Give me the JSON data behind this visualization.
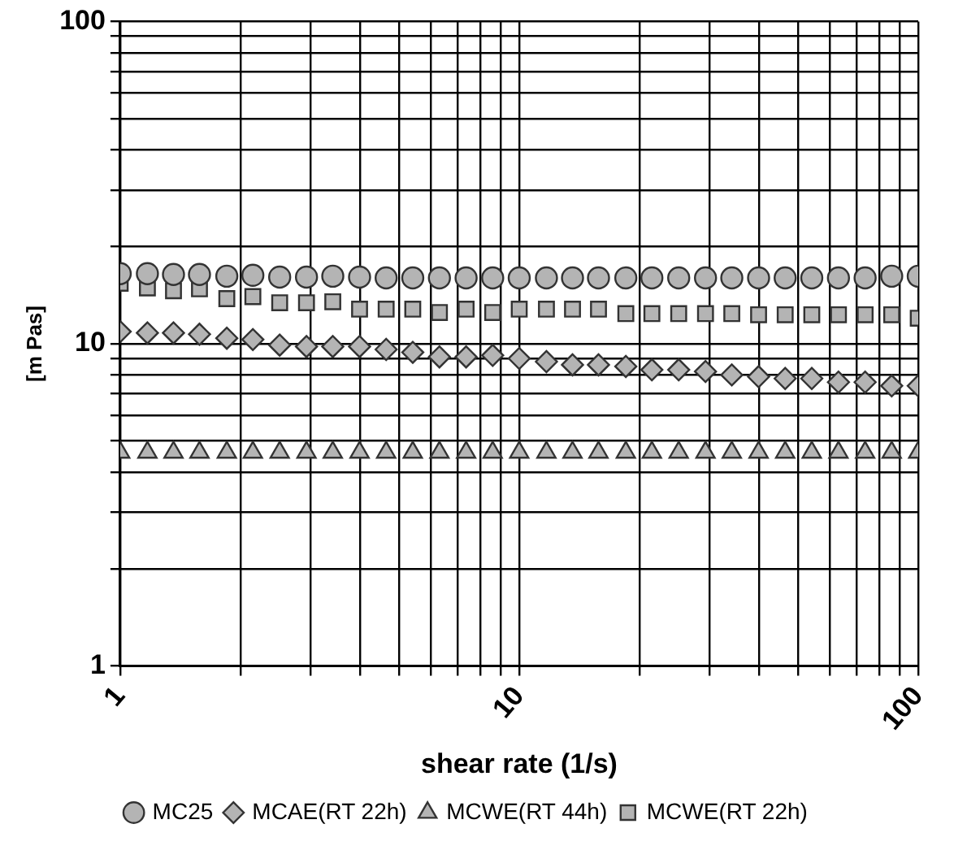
{
  "chart_data": {
    "type": "scatter",
    "xlabel": "shear rate (1/s)",
    "ylabel": "[m Pas]",
    "log": "xy",
    "grid": true,
    "legend": "bottom",
    "x": [
      1,
      1.17,
      1.36,
      1.58,
      1.85,
      2.15,
      2.51,
      2.93,
      3.41,
      3.98,
      4.64,
      5.41,
      6.31,
      7.36,
      8.58,
      10,
      11.7,
      13.6,
      15.8,
      18.5,
      21.5,
      25.1,
      29.3,
      34.1,
      39.8,
      46.4,
      54.1,
      63.1,
      73.6,
      85.8,
      100
    ],
    "xlim": [
      1,
      100
    ],
    "ylim": [
      1,
      100
    ],
    "xticks": [
      1,
      {
        "value": 2,
        "label": null
      },
      {
        "value": 3,
        "label": null
      },
      {
        "value": 4,
        "label": null
      },
      {
        "value": 5,
        "label": null
      },
      {
        "value": 6,
        "label": null
      },
      {
        "value": 7,
        "label": null
      },
      {
        "value": 8,
        "label": null
      },
      {
        "value": 9,
        "label": null
      },
      10,
      {
        "value": 20,
        "label": null
      },
      {
        "value": 30,
        "label": null
      },
      {
        "value": 40,
        "label": null
      },
      {
        "value": 50,
        "label": null
      },
      {
        "value": 60,
        "label": null
      },
      {
        "value": 70,
        "label": null
      },
      {
        "value": 80,
        "label": null
      },
      {
        "value": 90,
        "label": null
      },
      100
    ],
    "yticks": [
      1,
      {
        "value": 2,
        "label": null
      },
      {
        "value": 3,
        "label": null
      },
      {
        "value": 4,
        "label": null
      },
      {
        "value": 5,
        "label": null
      },
      {
        "value": 6,
        "label": null
      },
      {
        "value": 7,
        "label": null
      },
      {
        "value": 8,
        "label": null
      },
      {
        "value": 9,
        "label": null
      },
      10,
      {
        "value": 20,
        "label": null
      },
      {
        "value": 30,
        "label": null
      },
      {
        "value": 40,
        "label": null
      },
      {
        "value": 50,
        "label": null
      },
      {
        "value": 60,
        "label": null
      },
      {
        "value": 70,
        "label": null
      },
      {
        "value": 80,
        "label": null
      },
      {
        "value": 90,
        "label": null
      },
      100
    ],
    "series": [
      {
        "name": "MC25",
        "color": "#b4b4b4",
        "marker": "circle",
        "values": [
          16.5,
          16.5,
          16.4,
          16.4,
          16.2,
          16.3,
          16.1,
          16.1,
          16.2,
          16.1,
          16.0,
          16.0,
          16.0,
          16.0,
          16.0,
          16.0,
          16.0,
          16.0,
          16.0,
          16.0,
          16.0,
          16.0,
          16.0,
          16.0,
          16.0,
          16.0,
          16.0,
          16.0,
          16.0,
          16.2,
          16.2
        ]
      },
      {
        "name": "MCAE(RT 22h)",
        "color": "#b4b4b4",
        "marker": "diamond",
        "values": [
          10.9,
          10.8,
          10.8,
          10.7,
          10.4,
          10.3,
          9.9,
          9.8,
          9.8,
          9.8,
          9.6,
          9.4,
          9.1,
          9.1,
          9.2,
          9.0,
          8.8,
          8.6,
          8.6,
          8.5,
          8.3,
          8.3,
          8.2,
          8.0,
          7.9,
          7.8,
          7.8,
          7.6,
          7.6,
          7.4,
          7.4
        ]
      },
      {
        "name": "MCWE(RT 44h)",
        "color": "#b4b4b4",
        "marker": "triangle",
        "values": [
          4.6,
          4.6,
          4.6,
          4.6,
          4.6,
          4.6,
          4.6,
          4.6,
          4.6,
          4.6,
          4.6,
          4.6,
          4.6,
          4.6,
          4.6,
          4.6,
          4.6,
          4.6,
          4.6,
          4.6,
          4.6,
          4.6,
          4.6,
          4.6,
          4.6,
          4.6,
          4.6,
          4.6,
          4.6,
          4.6,
          4.6
        ]
      },
      {
        "name": "MCWE(RT 22h)",
        "color": "#b4b4b4",
        "marker": "square",
        "values": [
          15.4,
          14.9,
          14.6,
          14.8,
          13.8,
          14.0,
          13.4,
          13.4,
          13.5,
          12.8,
          12.8,
          12.8,
          12.5,
          12.8,
          12.5,
          12.8,
          12.8,
          12.8,
          12.8,
          12.4,
          12.4,
          12.4,
          12.4,
          12.4,
          12.3,
          12.3,
          12.3,
          12.3,
          12.3,
          12.3,
          12.0
        ]
      }
    ]
  }
}
